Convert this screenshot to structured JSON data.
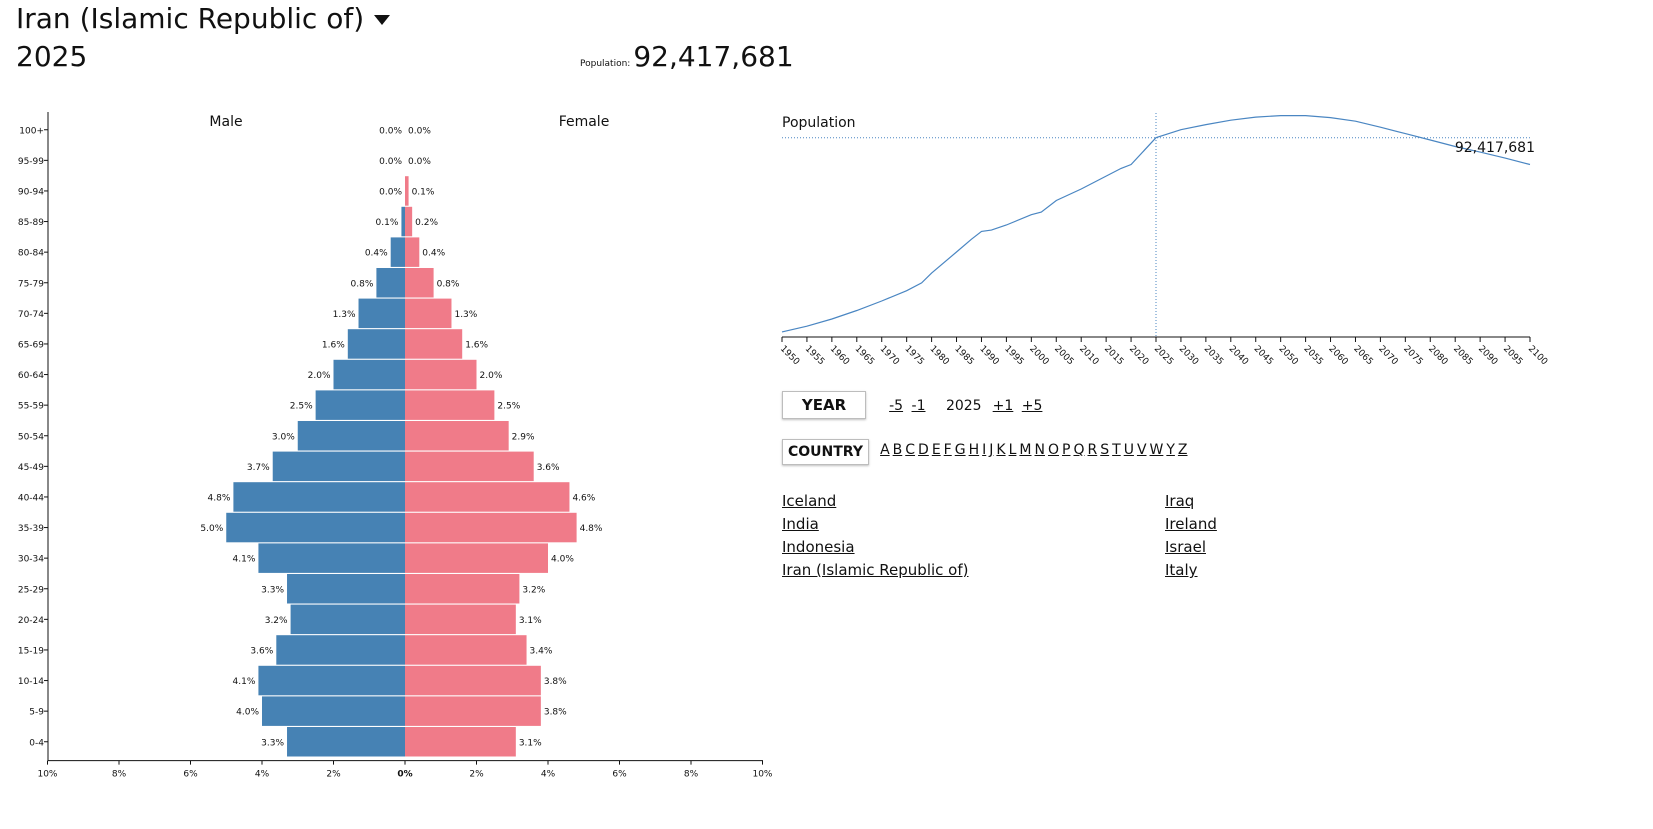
{
  "header": {
    "country": "Iran (Islamic Republic of)",
    "year": "2025",
    "population_label": "Population:",
    "population_value": "92,417,681"
  },
  "colors": {
    "male": "#4682b4",
    "female": "#f07b89",
    "line": "#4a86c2"
  },
  "pyramid": {
    "type": "bar",
    "male_label": "Male",
    "female_label": "Female",
    "age_groups": [
      "100+",
      "95-99",
      "90-94",
      "85-89",
      "80-84",
      "75-79",
      "70-74",
      "65-69",
      "60-64",
      "55-59",
      "50-54",
      "45-49",
      "40-44",
      "35-39",
      "30-34",
      "25-29",
      "20-24",
      "15-19",
      "10-14",
      "5-9",
      "0-4"
    ],
    "male": [
      0.0,
      0.0,
      0.0,
      0.1,
      0.4,
      0.8,
      1.3,
      1.6,
      2.0,
      2.5,
      3.0,
      3.7,
      4.8,
      5.0,
      4.1,
      3.3,
      3.2,
      3.6,
      4.1,
      4.0,
      3.3
    ],
    "female": [
      0.0,
      0.0,
      0.1,
      0.2,
      0.4,
      0.8,
      1.3,
      1.6,
      2.0,
      2.5,
      2.9,
      3.6,
      4.6,
      4.8,
      4.0,
      3.2,
      3.1,
      3.4,
      3.8,
      3.8,
      3.1
    ],
    "x_ticks": [
      "10%",
      "8%",
      "6%",
      "4%",
      "2%",
      "0%",
      "2%",
      "4%",
      "6%",
      "8%",
      "10%"
    ],
    "xlim": [
      -10,
      10
    ]
  },
  "population_chart": {
    "type": "line",
    "title": "Population",
    "value_label": "92,417,681",
    "current_year": 2025,
    "current_value": 92.4,
    "x_ticks": [
      "1950",
      "1955",
      "1960",
      "1965",
      "1970",
      "1975",
      "1980",
      "1985",
      "1990",
      "1995",
      "2000",
      "2005",
      "2010",
      "2015",
      "2020",
      "2025",
      "2030",
      "2035",
      "2040",
      "2045",
      "2050",
      "2055",
      "2060",
      "2065",
      "2070",
      "2075",
      "2080",
      "2085",
      "2090",
      "2095",
      "2100"
    ],
    "series": [
      [
        1950,
        17.0
      ],
      [
        1955,
        19.2
      ],
      [
        1960,
        22.0
      ],
      [
        1965,
        25.3
      ],
      [
        1970,
        29.0
      ],
      [
        1975,
        33.0
      ],
      [
        1978,
        36.0
      ],
      [
        1980,
        39.8
      ],
      [
        1985,
        48.0
      ],
      [
        1988,
        53.0
      ],
      [
        1990,
        56.0
      ],
      [
        1992,
        56.5
      ],
      [
        1995,
        58.5
      ],
      [
        2000,
        62.5
      ],
      [
        2002,
        63.5
      ],
      [
        2005,
        68.0
      ],
      [
        2010,
        72.5
      ],
      [
        2015,
        77.5
      ],
      [
        2018,
        80.5
      ],
      [
        2020,
        82.0
      ],
      [
        2025,
        92.4
      ],
      [
        2030,
        95.5
      ],
      [
        2035,
        97.5
      ],
      [
        2040,
        99.2
      ],
      [
        2045,
        100.4
      ],
      [
        2050,
        101.0
      ],
      [
        2055,
        101.0
      ],
      [
        2060,
        100.2
      ],
      [
        2065,
        98.8
      ],
      [
        2070,
        96.5
      ],
      [
        2075,
        94.0
      ],
      [
        2080,
        91.5
      ],
      [
        2085,
        89.0
      ],
      [
        2090,
        86.8
      ],
      [
        2095,
        84.5
      ],
      [
        2100,
        82.0
      ]
    ],
    "ylim": [
      15,
      102
    ]
  },
  "controls": {
    "year_button": "YEAR",
    "minus5": "-5",
    "minus1": "-1",
    "current_year": "2025",
    "plus1": "+1",
    "plus5": "+5",
    "country_button": "COUNTRY",
    "letters": [
      "A",
      "B",
      "C",
      "D",
      "E",
      "F",
      "G",
      "H",
      "I",
      "J",
      "K",
      "L",
      "M",
      "N",
      "O",
      "P",
      "Q",
      "R",
      "S",
      "T",
      "U",
      "V",
      "W",
      "Y",
      "Z"
    ]
  },
  "countries": {
    "left": [
      "Iceland",
      "India",
      "Indonesia",
      "Iran (Islamic Republic of)"
    ],
    "right": [
      "Iraq",
      "Ireland",
      "Israel",
      "Italy"
    ]
  }
}
